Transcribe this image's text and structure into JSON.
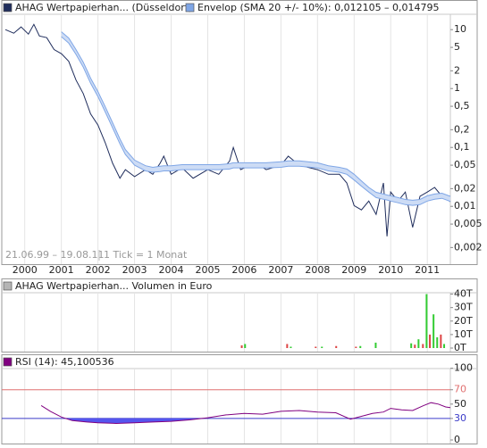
{
  "chart_data": [
    {
      "type": "line",
      "log_scale": true,
      "annotation": "21.06.99 – 19.08.11",
      "tick_note": "1 Tick = 1 Monat",
      "xlim": [
        1999.47,
        2011.63
      ],
      "xticks": [
        2000,
        2001,
        2002,
        2003,
        2004,
        2005,
        2006,
        2007,
        2008,
        2009,
        2010,
        2011
      ],
      "ylim": [
        0.0012,
        17
      ],
      "yticks": [
        10,
        5,
        2,
        1,
        {
          "value": 0.5,
          "label": "0,5"
        },
        {
          "value": 0.2,
          "label": "0,2"
        },
        {
          "value": 0.1,
          "label": "0,1"
        },
        {
          "value": 0.05,
          "label": "0,05"
        },
        {
          "value": 0.02,
          "label": "0,02"
        },
        {
          "value": 0.01,
          "label": "0,01"
        },
        {
          "value": 0.005,
          "label": "0,005"
        },
        {
          "value": 0.002,
          "label": "0,002"
        }
      ],
      "x": [
        1999.47,
        1999.7,
        1999.9,
        2000.1,
        2000.25,
        2000.4,
        2000.6,
        2000.8,
        2001.0,
        2001.2,
        2001.4,
        2001.6,
        2001.8,
        2002.0,
        2002.2,
        2002.4,
        2002.6,
        2002.75,
        2003.0,
        2003.3,
        2003.5,
        2003.7,
        2003.8,
        2004.0,
        2004.3,
        2004.6,
        2005.0,
        2005.3,
        2005.6,
        2005.7,
        2005.9,
        2006.3,
        2006.6,
        2007.0,
        2007.2,
        2007.5,
        2008.0,
        2008.3,
        2008.6,
        2008.8,
        2009.0,
        2009.2,
        2009.4,
        2009.6,
        2009.8,
        2009.9,
        2010.0,
        2010.2,
        2010.4,
        2010.6,
        2010.8,
        2011.0,
        2011.2,
        2011.4,
        2011.63
      ],
      "series": [
        {
          "name": "AHAG Wertpapierhan... (Düsseldorf)",
          "color": "#1f2d5c",
          "values": [
            10,
            8.7,
            11.1,
            8.4,
            12.3,
            7.8,
            7.3,
            4.6,
            3.9,
            2.9,
            1.4,
            0.82,
            0.37,
            0.24,
            0.12,
            0.054,
            0.03,
            0.042,
            0.032,
            0.042,
            0.035,
            0.054,
            0.071,
            0.035,
            0.045,
            0.03,
            0.042,
            0.035,
            0.059,
            0.1,
            0.042,
            0.055,
            0.042,
            0.05,
            0.071,
            0.05,
            0.042,
            0.035,
            0.035,
            0.025,
            0.0103,
            0.0087,
            0.0123,
            0.0073,
            0.025,
            0.0031,
            0.0175,
            0.0123,
            0.0175,
            0.0044,
            0.0148,
            0.0175,
            0.021,
            0.0148,
            0.012
          ]
        },
        {
          "name": "Envelop (SMA 20 +/- 10%): 0,012105 – 0,014795",
          "color": "#7fa6e6",
          "upper": [
            null,
            null,
            null,
            null,
            null,
            null,
            null,
            null,
            9.2,
            7.2,
            4.6,
            2.8,
            1.5,
            0.89,
            0.49,
            0.263,
            0.14,
            0.092,
            0.061,
            0.049,
            0.046,
            0.048,
            0.049,
            0.049,
            0.051,
            0.051,
            0.051,
            0.051,
            0.053,
            0.055,
            0.055,
            0.055,
            0.055,
            0.057,
            0.059,
            0.059,
            0.055,
            0.049,
            0.046,
            0.043,
            0.035,
            0.027,
            0.021,
            0.0173,
            0.0162,
            0.0156,
            0.0151,
            0.0141,
            0.0131,
            0.0127,
            0.0131,
            0.0151,
            0.0162,
            0.0167,
            0.014795
          ],
          "lower": [
            null,
            null,
            null,
            null,
            null,
            null,
            null,
            null,
            7.6,
            5.9,
            3.8,
            2.3,
            1.23,
            0.73,
            0.4,
            0.215,
            0.115,
            0.076,
            0.05,
            0.04,
            0.038,
            0.039,
            0.04,
            0.04,
            0.042,
            0.042,
            0.042,
            0.042,
            0.043,
            0.045,
            0.045,
            0.045,
            0.045,
            0.046,
            0.048,
            0.048,
            0.045,
            0.04,
            0.038,
            0.035,
            0.028,
            0.022,
            0.0175,
            0.0141,
            0.0132,
            0.0128,
            0.0123,
            0.0115,
            0.0107,
            0.0104,
            0.0107,
            0.0123,
            0.0132,
            0.0137,
            0.012105
          ]
        }
      ]
    },
    {
      "type": "bar",
      "title": "AHAG Wertpapierhan... Volumen in Euro",
      "ylim": [
        0,
        45000
      ],
      "yticks": [
        {
          "value": 40000,
          "label": "40T"
        },
        {
          "value": 30000,
          "label": "30T"
        },
        {
          "value": 20000,
          "label": "20T"
        },
        {
          "value": 10000,
          "label": "10T"
        },
        {
          "value": 0,
          "label": "0T"
        }
      ],
      "x": [
        2005.93,
        2006.02,
        2007.17,
        2007.27,
        2007.95,
        2008.12,
        2008.51,
        2009.05,
        2009.17,
        2009.59,
        2010.56,
        2010.66,
        2010.76,
        2010.88,
        2010.98,
        2011.07,
        2011.17,
        2011.27,
        2011.37,
        2011.46
      ],
      "values": [
        2000,
        3000,
        3000,
        1000,
        1000,
        1000,
        1500,
        1000,
        1500,
        4000,
        3500,
        2500,
        6500,
        3000,
        40000,
        10000,
        25000,
        8000,
        10000,
        3000
      ],
      "colors": [
        "#dd4444",
        "#33cc33",
        "#dd4444",
        "#33cc33",
        "#dd4444",
        "#33cc33",
        "#dd4444",
        "#dd4444",
        "#33cc33",
        "#33cc33",
        "#33cc33",
        "#dd4444",
        "#33cc33",
        "#dd4444",
        "#33cc33",
        "#dd4444",
        "#33cc33",
        "#33cc33",
        "#dd4444",
        "#33cc33"
      ]
    },
    {
      "type": "line",
      "ylim": [
        0,
        107
      ],
      "yticks": [
        100,
        70,
        50,
        30,
        0
      ],
      "levels": [
        {
          "value": 70,
          "color": "#e07070"
        },
        {
          "value": 30,
          "color": "#3a3ac8"
        }
      ],
      "oversold_fill": "#5555ee",
      "x": [
        2000.45,
        2000.7,
        2001.0,
        2001.3,
        2001.7,
        2002.0,
        2002.5,
        2003.0,
        2003.5,
        2004.0,
        2004.5,
        2005.0,
        2005.5,
        2006.0,
        2006.5,
        2007.0,
        2007.5,
        2008.0,
        2008.5,
        2008.9,
        2009.2,
        2009.5,
        2009.8,
        2010.0,
        2010.3,
        2010.6,
        2010.9,
        2011.1,
        2011.3,
        2011.5,
        2011.63
      ],
      "series": [
        {
          "name": "RSI (14): 45,100536",
          "color": "#800080",
          "values": [
            48,
            40,
            32,
            27,
            25,
            24,
            23,
            24,
            25,
            26,
            28,
            31,
            35,
            37,
            36,
            40,
            41,
            39,
            38,
            29,
            33,
            37,
            39,
            44,
            42,
            41,
            48,
            52,
            50,
            46,
            45.100536
          ]
        }
      ]
    }
  ]
}
